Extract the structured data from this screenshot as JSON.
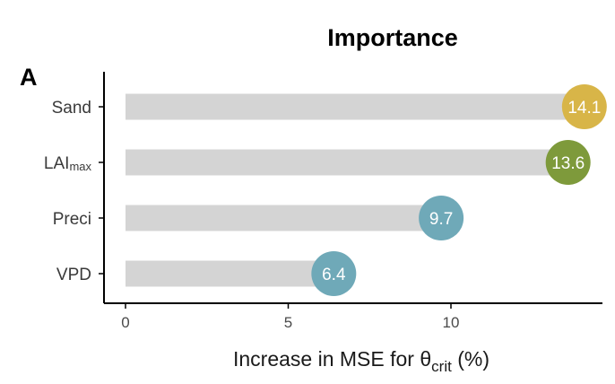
{
  "chart_data": {
    "type": "bar",
    "title": "Importance",
    "panel_label": "A",
    "categories": [
      {
        "main": "Sand",
        "sub": ""
      },
      {
        "main": "LAI",
        "sub": "max"
      },
      {
        "main": "Preci",
        "sub": ""
      },
      {
        "main": "VPD",
        "sub": ""
      }
    ],
    "values": [
      14.1,
      13.6,
      9.7,
      6.4
    ],
    "value_labels": [
      "14.1",
      "13.6",
      "9.7",
      "6.4"
    ],
    "marker_colors": [
      "#d8b548",
      "#7e9a3b",
      "#6fa9b8",
      "#6fa9b8"
    ],
    "bar_color": "#d4d4d4",
    "axis_color": "#000000",
    "xlabel": {
      "prefix": "Increase in MSE for ",
      "symbol": "θ",
      "subscript": "crit",
      "suffix": " (%)"
    },
    "xticks": [
      0,
      5,
      10
    ],
    "xtick_labels": [
      "0",
      "5",
      "10"
    ],
    "xlim": [
      -0.6,
      14.5
    ],
    "grid": false,
    "legend": "none"
  }
}
